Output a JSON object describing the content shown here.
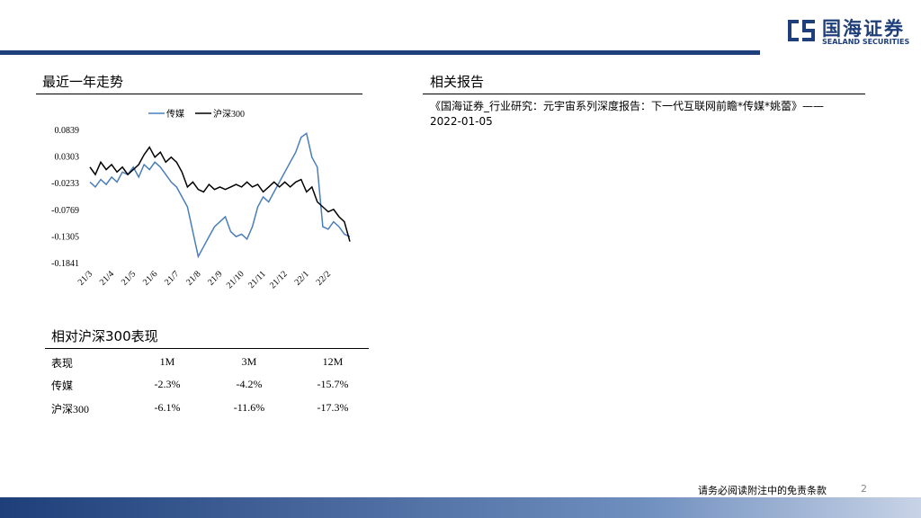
{
  "header": {
    "logo_cn": "国海证券",
    "logo_en": "SEALAND SECURITIES"
  },
  "chart_section": {
    "title": "最近一年走势"
  },
  "chart_data": {
    "type": "line",
    "categories": [
      "21/3",
      null,
      null,
      null,
      "21/4",
      null,
      null,
      null,
      "21/5",
      null,
      null,
      null,
      "21/6",
      null,
      null,
      null,
      "21/7",
      null,
      null,
      null,
      "21/8",
      null,
      null,
      null,
      "21/9",
      null,
      null,
      null,
      "21/10",
      null,
      null,
      null,
      "21/11",
      null,
      null,
      null,
      "21/12",
      null,
      null,
      null,
      "22/1",
      null,
      null,
      null,
      "22/2",
      null,
      null,
      null,
      null
    ],
    "series": [
      {
        "name": "传媒",
        "color": "#4a7ebb",
        "values": [
          -0.02,
          -0.03,
          -0.015,
          -0.025,
          -0.01,
          -0.02,
          0.0,
          -0.005,
          0.01,
          -0.01,
          0.015,
          0.005,
          0.02,
          0.01,
          -0.005,
          -0.02,
          -0.03,
          -0.05,
          -0.07,
          -0.12,
          -0.17,
          -0.15,
          -0.13,
          -0.11,
          -0.1,
          -0.09,
          -0.12,
          -0.13,
          -0.125,
          -0.135,
          -0.11,
          -0.07,
          -0.05,
          -0.06,
          -0.04,
          -0.02,
          0.0,
          0.02,
          0.04,
          0.07,
          0.078,
          0.03,
          0.01,
          -0.11,
          -0.115,
          -0.1,
          -0.11,
          -0.125,
          -0.13
        ]
      },
      {
        "name": "沪深300",
        "color": "#000000",
        "values": [
          0.01,
          -0.005,
          0.02,
          0.005,
          0.015,
          0.0,
          0.01,
          -0.005,
          0.005,
          0.015,
          0.035,
          0.05,
          0.03,
          0.04,
          0.02,
          0.03,
          0.02,
          0.0,
          -0.03,
          -0.02,
          -0.035,
          -0.04,
          -0.025,
          -0.035,
          -0.03,
          -0.035,
          -0.03,
          -0.025,
          -0.03,
          -0.02,
          -0.03,
          -0.025,
          -0.04,
          -0.03,
          -0.02,
          -0.03,
          -0.02,
          -0.03,
          -0.02,
          -0.015,
          -0.04,
          -0.03,
          -0.06,
          -0.07,
          -0.08,
          -0.075,
          -0.09,
          -0.1,
          -0.14
        ]
      }
    ],
    "ylim": [
      -0.1841,
      0.0839
    ],
    "yticks": [
      {
        "value": 0.0839,
        "label": "0.0839"
      },
      {
        "value": 0.0303,
        "label": "0.0303"
      },
      {
        "value": -0.0233,
        "label": "-0.0233"
      },
      {
        "value": -0.0769,
        "label": "-0.0769"
      },
      {
        "value": -0.1305,
        "label": "-0.1305"
      },
      {
        "value": -0.1841,
        "label": "-0.1841"
      }
    ],
    "legend": "top"
  },
  "reports": {
    "title": "相关报告",
    "items": [
      "《国海证券_行业研究：元宇宙系列深度报告：下一代互联网前瞻*传媒*姚蕾》——2022-01-05"
    ]
  },
  "table": {
    "title": "相对沪深300表现",
    "header": [
      "表现",
      "1M",
      "3M",
      "12M"
    ],
    "rows": [
      [
        "传媒",
        "-2.3%",
        "-4.2%",
        "-15.7%"
      ],
      [
        "沪深300",
        "-6.1%",
        "-11.6%",
        "-17.3%"
      ]
    ]
  },
  "footer": {
    "disclaimer": "请务必阅读附注中的免责条款",
    "page": "2"
  }
}
